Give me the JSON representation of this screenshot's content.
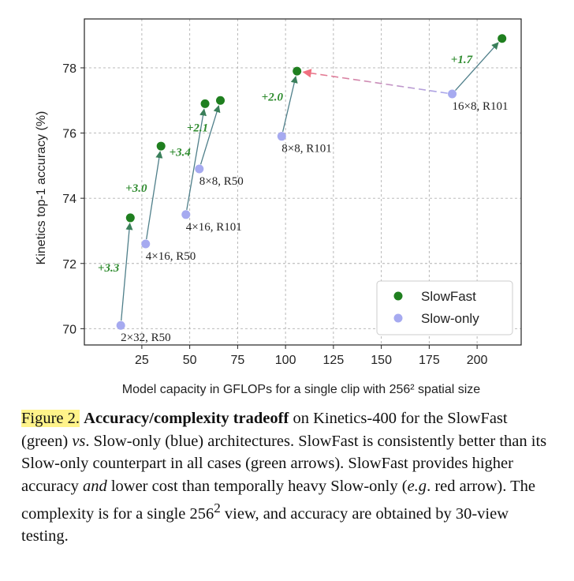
{
  "chart_data": {
    "type": "scatter",
    "xlabel": "Model capacity in GFLOPs for a single clip with 256² spatial size",
    "ylabel": "Kinetics top-1 accuracy (%)",
    "xlim": [
      -5,
      223
    ],
    "ylim": [
      69.5,
      79.5
    ],
    "xticks": [
      25,
      50,
      75,
      100,
      125,
      150,
      175,
      200
    ],
    "yticks": [
      70,
      72,
      74,
      76,
      78
    ],
    "grid": true,
    "legend_position": "lower-right",
    "series": [
      {
        "name": "SlowFast",
        "color": "#1f7f1f",
        "points": [
          {
            "x": 19,
            "y": 73.4
          },
          {
            "x": 35,
            "y": 75.6
          },
          {
            "x": 58,
            "y": 76.9
          },
          {
            "x": 66,
            "y": 77.0
          },
          {
            "x": 106,
            "y": 77.9
          },
          {
            "x": 213,
            "y": 78.9
          }
        ]
      },
      {
        "name": "Slow-only",
        "color": "#a6aaf0",
        "points": [
          {
            "x": 14,
            "y": 70.1,
            "label": "2×32, R50"
          },
          {
            "x": 27,
            "y": 72.6,
            "label": "4×16, R50"
          },
          {
            "x": 48,
            "y": 73.5,
            "label": "4×16, R101"
          },
          {
            "x": 55,
            "y": 74.9,
            "label": "8×8, R50"
          },
          {
            "x": 98,
            "y": 75.9,
            "label": "8×8, R101"
          },
          {
            "x": 187,
            "y": 77.2,
            "label": "16×8, R101"
          }
        ]
      }
    ],
    "arrows": [
      {
        "from": [
          14,
          70.1
        ],
        "to": [
          19,
          73.4
        ],
        "label": "+3.3"
      },
      {
        "from": [
          27,
          72.6
        ],
        "to": [
          35,
          75.6
        ],
        "label": "+3.0"
      },
      {
        "from": [
          48,
          73.5
        ],
        "to": [
          58,
          76.9
        ],
        "label": "+3.4"
      },
      {
        "from": [
          55,
          74.9
        ],
        "to": [
          66,
          77.0
        ],
        "label": "+2.1"
      },
      {
        "from": [
          98,
          75.9
        ],
        "to": [
          106,
          77.9
        ],
        "label": "+2.0"
      },
      {
        "from": [
          187,
          77.2
        ],
        "to": [
          213,
          78.9
        ],
        "label": "+1.7"
      }
    ],
    "red_arrow": {
      "from": [
        187,
        77.2
      ],
      "to": [
        106,
        77.9
      ]
    }
  },
  "caption": {
    "figure_label": "Figure 2.",
    "title": "Accuracy/complexity tradeoff",
    "p1": " on Kinetics-400 for the SlowFast (green) ",
    "vs": "vs",
    "p2": ". Slow-only (blue) architectures. SlowFast is consistently better than its Slow-only counterpart in all cases (green arrows). SlowFast provides higher accuracy ",
    "and": "and",
    "p3": " lower cost than temporally heavy Slow-only (",
    "eg": "e.g",
    "p4": ". red arrow). The complexity is for a single 256",
    "sup": "2",
    "p5": " view, and accuracy are obtained by 30-view testing."
  }
}
